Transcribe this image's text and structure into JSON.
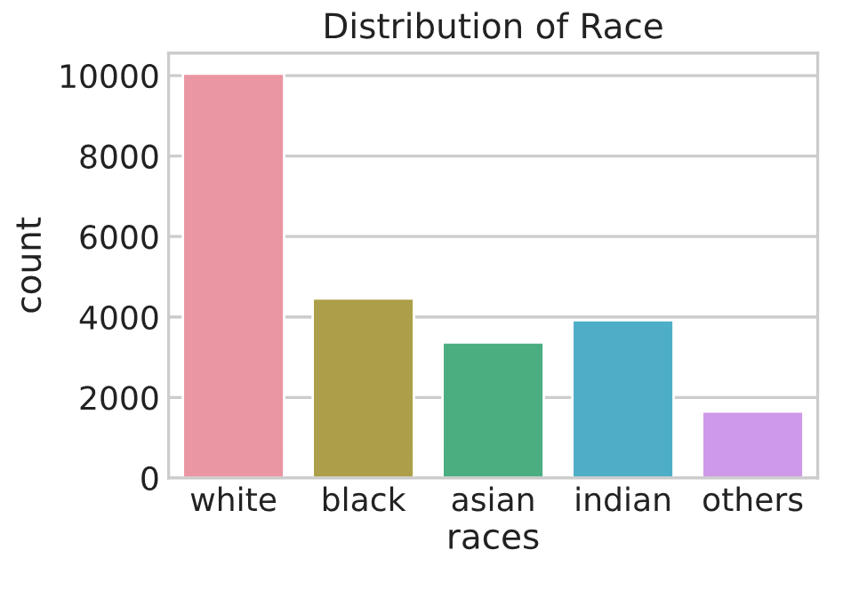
{
  "chart_data": {
    "type": "bar",
    "title": "Distribution of Race",
    "xlabel": "races",
    "ylabel": "count",
    "categories": [
      "white",
      "black",
      "asian",
      "indian",
      "others"
    ],
    "values": [
      10050,
      4460,
      3370,
      3920,
      1650
    ],
    "colors": [
      "#ea96a3",
      "#ad9f49",
      "#4bae80",
      "#4eaec8",
      "#ce99e8"
    ],
    "ylim": [
      0,
      10560
    ],
    "yticks": [
      0,
      2000,
      4000,
      6000,
      8000,
      10000
    ],
    "grid": "y"
  }
}
